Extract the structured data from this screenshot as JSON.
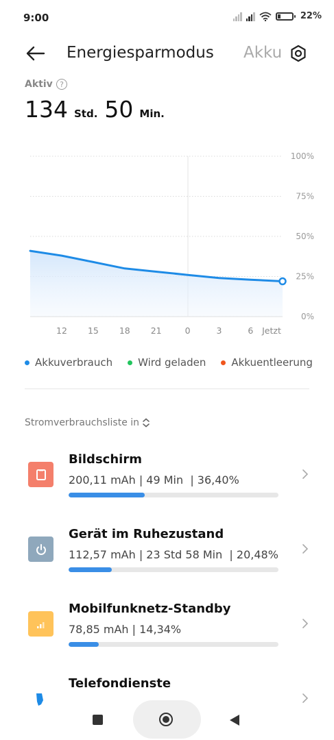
{
  "status_bar": {
    "time": "9:00",
    "battery": "22%",
    "battery_level": 0.22
  },
  "header": {
    "title": "Energiesparmodus",
    "title_next": "Akku"
  },
  "summary": {
    "label": "Aktiv",
    "hours": "134",
    "hours_unit": "Std.",
    "minutes": "50",
    "minutes_unit": "Min."
  },
  "chart_data": {
    "type": "area",
    "x": [
      "12",
      "15",
      "18",
      "21",
      "0",
      "3",
      "6",
      "Jetzt"
    ],
    "y_ticks": [
      "100%",
      "75%",
      "50%",
      "25%",
      "0%"
    ],
    "ylim": [
      0,
      100
    ],
    "series": [
      {
        "name": "Akkuverbrauch",
        "values": [
          38,
          34,
          30,
          28,
          26,
          24,
          23,
          22
        ]
      }
    ],
    "legend_position": "bottom",
    "colors": {
      "series": "#1e8be6",
      "grid": "#d9d9d9"
    }
  },
  "legend": [
    {
      "label": "Akkuverbrauch",
      "color": "#1e8be6"
    },
    {
      "label": "Wird geladen",
      "color": "#22c55e"
    },
    {
      "label": "Akkuentleerung",
      "color": "#f0561d"
    }
  ],
  "list_header": "Stromverbrauchsliste in",
  "items": [
    {
      "name": "Bildschirm",
      "stats": "200,11 mAh | 49 Min  | 36,40%",
      "share": 0.364,
      "icon": "screen-icon",
      "color": "#f47f6b"
    },
    {
      "name": "Gerät im Ruhezustand",
      "stats": "112,57 mAh | 23 Std 58 Min  | 20,48%",
      "share": 0.2048,
      "icon": "power-icon",
      "color": "#8fa8bc"
    },
    {
      "name": "Mobilfunknetz-Standby",
      "stats": "78,85 mAh | 14,34%",
      "share": 0.1434,
      "icon": "signal-icon",
      "color": "#ffc35a"
    },
    {
      "name": "Telefondienste",
      "stats": "",
      "share": 0,
      "icon": "phone-icon",
      "color": "#1e8be6"
    }
  ]
}
